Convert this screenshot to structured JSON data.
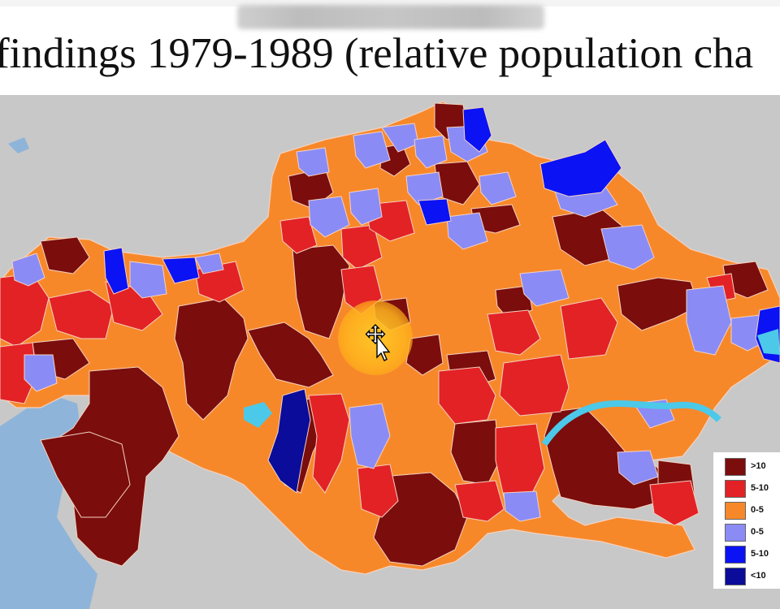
{
  "title": "findings 1979-1989 (relative population cha",
  "legend": {
    "items": [
      {
        "label": ">10",
        "color": "#7b0d0d"
      },
      {
        "label": "5-10",
        "color": "#e32226"
      },
      {
        "label": "0-5",
        "color": "#f7882a"
      },
      {
        "label": "0-5",
        "color": "#8b8bf6"
      },
      {
        "label": "5-10",
        "color": "#0b12f4"
      },
      {
        "label": "<10",
        "color": "#0b0c9a"
      }
    ]
  },
  "colors": {
    "background_land": "#c9c9c9",
    "water": "#8fb4d9",
    "lake_highlight": "#4cc9e8",
    "region_border": "#f2d2c2"
  },
  "icons": [
    "move-cursor-icon"
  ]
}
